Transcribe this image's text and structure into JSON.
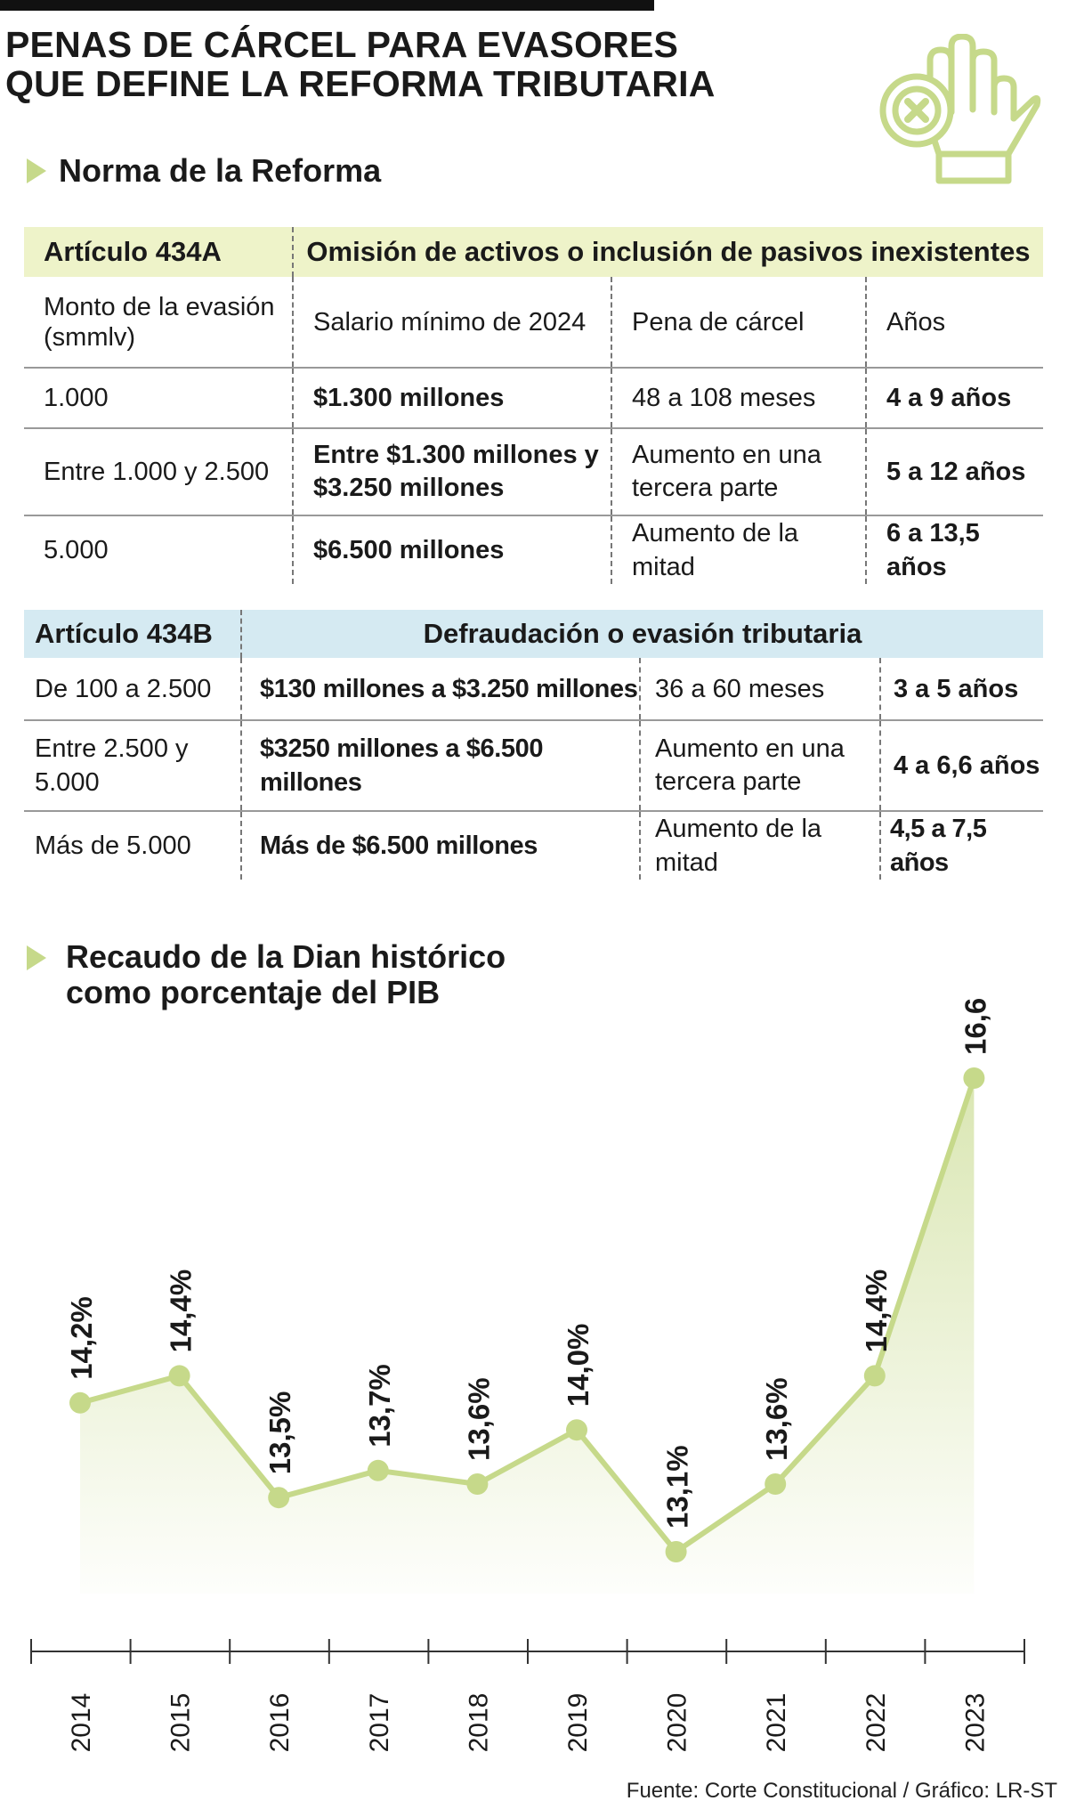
{
  "title_lines": [
    "PENAS DE CÁRCEL PARA EVASORES",
    "QUE DEFINE LA REFORMA TRIBUTARIA"
  ],
  "icons": {
    "header": "stop-hand-icon",
    "bullet": "triangle-bullet-icon"
  },
  "colors": {
    "accent_green": "#c6d98a",
    "line_green": "#c6d98a",
    "table1_header": "#eef3c9",
    "table2_header": "#d5eaf2"
  },
  "section1_title": "Norma de la Reforma",
  "table1": {
    "article": "Artículo 434A",
    "heading": "Omisión de activos o inclusión de pasivos inexistentes",
    "columns": [
      "Monto de la evasión (smmlv)",
      "Salario mínimo de 2024",
      "Pena de cárcel",
      "Años"
    ],
    "rows": [
      [
        "1.000",
        "$1.300 millones",
        "48 a 108 meses",
        "4 a 9 años"
      ],
      [
        "Entre 1.000 y 2.500",
        "Entre $1.300 millones y $3.250 millones",
        "Aumento en una tercera parte",
        "5 a 12 años"
      ],
      [
        "5.000",
        "$6.500 millones",
        "Aumento de la mitad",
        "6 a 13,5 años"
      ]
    ]
  },
  "table2": {
    "article": "Artículo 434B",
    "heading": "Defraudación o evasión tributaria",
    "rows": [
      [
        "De 100 a 2.500",
        "$130 millones a $3.250 millones",
        "36 a 60 meses",
        "3 a 5 años"
      ],
      [
        "Entre 2.500 y 5.000",
        "$3250 millones a $6.500 millones",
        "Aumento en una tercera parte",
        "4 a 6,6 años"
      ],
      [
        "Más de 5.000",
        "Más de $6.500 millones",
        "Aumento de la mitad",
        "4,5 a 7,5 años"
      ]
    ]
  },
  "chart_data": {
    "type": "area",
    "title": "Recaudo de la Dian histórico como porcentaje del PIB",
    "x": [
      "2014",
      "2015",
      "2016",
      "2017",
      "2018",
      "2019",
      "2020",
      "2021",
      "2022",
      "2023"
    ],
    "values": [
      14.2,
      14.4,
      13.5,
      13.7,
      13.6,
      14.0,
      13.1,
      13.6,
      14.4,
      16.6
    ],
    "labels": [
      "14,2%",
      "14,4%",
      "13,5%",
      "13,7%",
      "13,6%",
      "14,0%",
      "13,1%",
      "13,6%",
      "14,4%",
      "16,6%"
    ],
    "unit": "%",
    "grid": false
  },
  "source": "Fuente: Corte Constitucional / Gráfico: LR-ST"
}
